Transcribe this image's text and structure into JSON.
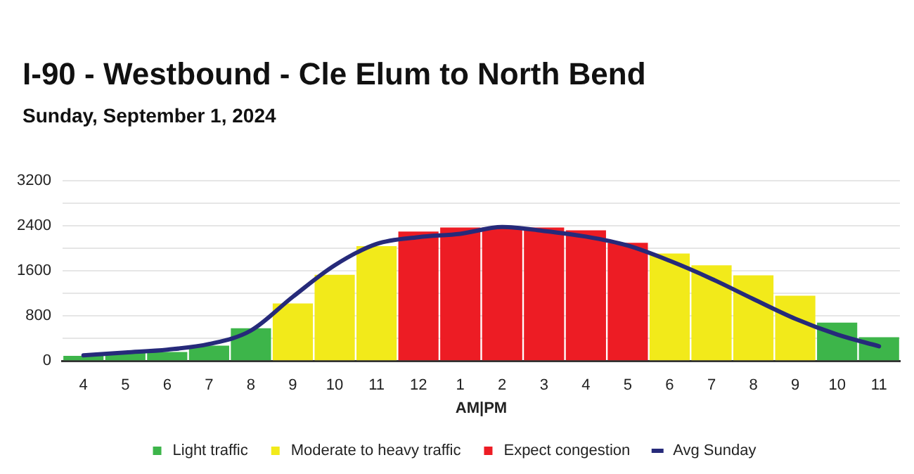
{
  "chart_data": {
    "type": "bar",
    "title": "I-90 - Westbound - Cle Elum to North Bend",
    "subtitle": "Sunday, September 1, 2024",
    "xlabel": "AM|PM",
    "categories": [
      "4",
      "5",
      "6",
      "7",
      "8",
      "9",
      "10",
      "11",
      "12",
      "1",
      "2",
      "3",
      "4",
      "5",
      "6",
      "7",
      "8",
      "9",
      "10",
      "11"
    ],
    "series": [
      {
        "name": "Light traffic",
        "color": "#3db54a",
        "values": [
          90,
          140,
          160,
          270,
          580,
          null,
          null,
          null,
          null,
          null,
          null,
          null,
          null,
          null,
          null,
          null,
          null,
          null,
          680,
          420
        ]
      },
      {
        "name": "Moderate to heavy traffic",
        "color": "#f2ea1a",
        "values": [
          null,
          null,
          null,
          null,
          null,
          1020,
          1530,
          2040,
          null,
          null,
          null,
          null,
          null,
          null,
          1910,
          1700,
          1520,
          1160,
          null,
          null
        ]
      },
      {
        "name": "Expect congestion",
        "color": "#ed1c24",
        "values": [
          null,
          null,
          null,
          null,
          null,
          null,
          null,
          null,
          2300,
          2370,
          2370,
          2370,
          2320,
          2100,
          null,
          null,
          null,
          null,
          null,
          null
        ]
      },
      {
        "name": "Avg Sunday",
        "type": "line",
        "color": "#262a7a",
        "values": [
          100,
          150,
          200,
          300,
          540,
          1140,
          1700,
          2080,
          2200,
          2260,
          2380,
          2310,
          2210,
          2050,
          1780,
          1460,
          1100,
          750,
          470,
          260
        ]
      }
    ],
    "ylim": [
      0,
      3200
    ],
    "yticks": [
      0,
      {
        "value": 400,
        "label": null
      },
      800,
      {
        "value": 1200,
        "label": null
      },
      1600,
      {
        "value": 2000,
        "label": null
      },
      2400,
      {
        "value": 2800,
        "label": null
      },
      3200
    ],
    "grid": "y",
    "legend": "bottom",
    "marker": "none"
  }
}
